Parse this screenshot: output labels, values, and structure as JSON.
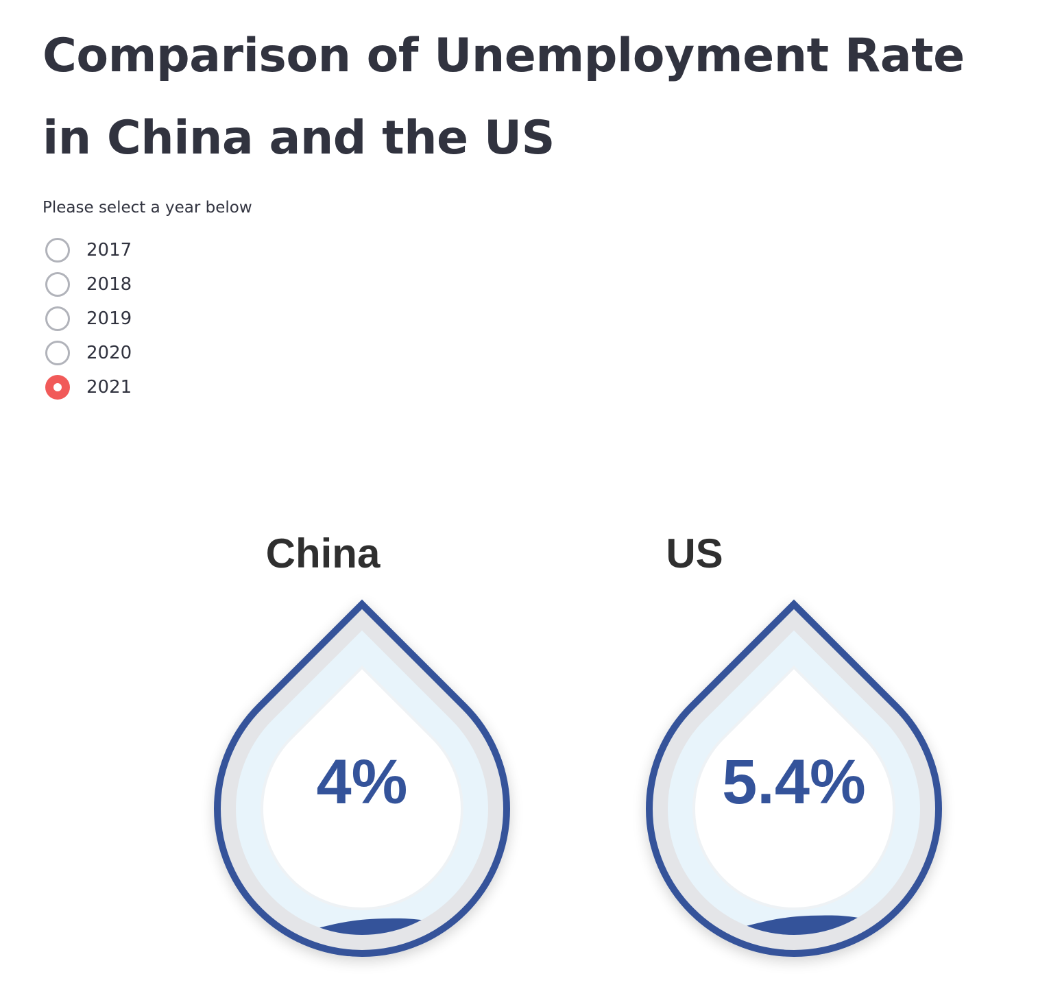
{
  "header": {
    "title": "Comparison of Unemployment Rate in China and the US"
  },
  "year_selector": {
    "label": "Please select a year below",
    "options": [
      "2017",
      "2018",
      "2019",
      "2020",
      "2021"
    ],
    "selected": "2021"
  },
  "colors": {
    "accent": "#f15a59",
    "drop_outline": "#34539a",
    "drop_fill": "#34539a",
    "drop_inner": "#e8f4fb"
  },
  "chart_data": [
    {
      "type": "liquid-fill-gauge",
      "title": "China",
      "value": 4,
      "label": "4%",
      "max": 100
    },
    {
      "type": "liquid-fill-gauge",
      "title": "US",
      "value": 5.4,
      "label": "5.4%",
      "max": 100
    }
  ]
}
